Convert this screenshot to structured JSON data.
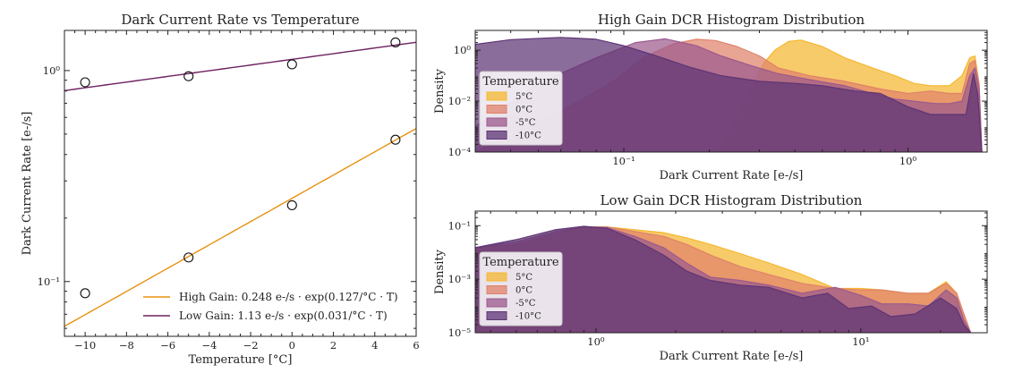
{
  "chart_data": [
    {
      "type": "scatter",
      "title": "Dark Current Rate vs Temperature",
      "xlabel": "Temperature [°C]",
      "ylabel": "Dark Current Rate [e-/s]",
      "xlim": [
        -11,
        6
      ],
      "ylim": [
        0.055,
        1.55
      ],
      "yscale": "log",
      "xticks": [
        -10,
        -8,
        -6,
        -4,
        -2,
        0,
        2,
        4,
        6
      ],
      "xtick_labels": [
        "−10",
        "−8",
        "−6",
        "−4",
        "−2",
        "0",
        "2",
        "4",
        "6"
      ],
      "yticks": [
        0.1,
        1.0
      ],
      "ytick_labels": [
        "10⁻¹",
        "10⁰"
      ],
      "legend_position": "lower-right",
      "series": [
        {
          "name": "High Gain: 0.248 e-/s · exp(0.127/°C · T)",
          "kind": "fit",
          "color": "#e8900f",
          "fit": {
            "a": 0.248,
            "b": 0.127
          },
          "points": [
            {
              "x": -10,
              "y": 0.088
            },
            {
              "x": -5,
              "y": 0.13
            },
            {
              "x": 0,
              "y": 0.23
            },
            {
              "x": 5,
              "y": 0.47
            }
          ]
        },
        {
          "name": "Low Gain: 1.13 e-/s · exp(0.031/°C · T)",
          "kind": "fit",
          "color": "#6e2160",
          "fit": {
            "a": 1.13,
            "b": 0.031
          },
          "points": [
            {
              "x": -10,
              "y": 0.88
            },
            {
              "x": -5,
              "y": 0.94
            },
            {
              "x": 0,
              "y": 1.07
            },
            {
              "x": 5,
              "y": 1.36
            }
          ]
        }
      ]
    },
    {
      "type": "area",
      "title": "High Gain DCR Histogram Distribution",
      "xlabel": "Dark Current Rate [e-/s]",
      "ylabel": "Density",
      "xscale": "log",
      "yscale": "log",
      "xlim": [
        0.03,
        1.9
      ],
      "ylim": [
        0.0001,
        6
      ],
      "xticks": [
        0.1,
        1
      ],
      "xtick_labels": [
        "10⁻¹",
        "10⁰"
      ],
      "yticks": [
        0.0001,
        0.01,
        1
      ],
      "ytick_labels": [
        "10⁻⁴",
        "10⁻²",
        "10⁰"
      ],
      "legend_title": "Temperature",
      "legend_position": "lower-left",
      "series": [
        {
          "name": "5°C",
          "color": "#f5b731",
          "x": [
            0.22,
            0.27,
            0.31,
            0.34,
            0.38,
            0.42,
            0.5,
            0.6,
            0.75,
            0.9,
            1.05,
            1.2,
            1.4,
            1.55,
            1.65,
            1.72,
            1.78,
            1.82
          ],
          "y": [
            0.0001,
            0.01,
            0.3,
            1.0,
            2.2,
            2.5,
            1.4,
            0.5,
            0.2,
            0.1,
            0.05,
            0.04,
            0.04,
            0.1,
            0.5,
            0.6,
            0.05,
            0.0001
          ]
        },
        {
          "name": "0°C",
          "color": "#e0826b",
          "x": [
            0.03,
            0.06,
            0.09,
            0.12,
            0.15,
            0.18,
            0.21,
            0.25,
            0.3,
            0.35,
            0.45,
            0.6,
            0.8,
            1.0,
            1.2,
            1.4,
            1.55,
            1.65,
            1.72,
            1.78,
            1.82
          ],
          "y": [
            0.0001,
            0.004,
            0.05,
            0.6,
            1.8,
            2.7,
            2.4,
            1.4,
            0.6,
            0.2,
            0.1,
            0.06,
            0.03,
            0.02,
            0.025,
            0.02,
            0.02,
            0.3,
            0.4,
            0.05,
            0.0001
          ]
        },
        {
          "name": "-5°C",
          "color": "#9c5a8e",
          "x": [
            0.03,
            0.05,
            0.08,
            0.11,
            0.14,
            0.18,
            0.22,
            0.28,
            0.35,
            0.45,
            0.6,
            0.75,
            0.9,
            1.05,
            1.25,
            1.4,
            1.55,
            1.65,
            1.72,
            1.78,
            1.82
          ],
          "y": [
            0.001,
            0.05,
            0.5,
            2.0,
            2.8,
            1.5,
            0.6,
            0.25,
            0.12,
            0.07,
            0.04,
            0.02,
            0.012,
            0.01,
            0.008,
            0.008,
            0.01,
            0.1,
            0.2,
            0.03,
            0.0001
          ]
        },
        {
          "name": "-10°C",
          "color": "#5e3575",
          "x": [
            0.03,
            0.04,
            0.06,
            0.08,
            0.1,
            0.13,
            0.17,
            0.22,
            0.3,
            0.4,
            0.5,
            0.65,
            0.8,
            1.0,
            1.2,
            1.45,
            1.6,
            1.7,
            1.76,
            1.82
          ],
          "y": [
            1.7,
            2.6,
            3.2,
            2.7,
            1.5,
            0.6,
            0.22,
            0.1,
            0.06,
            0.05,
            0.04,
            0.025,
            0.02,
            0.006,
            0.003,
            0.003,
            0.003,
            0.12,
            0.02,
            0.0001
          ]
        }
      ]
    },
    {
      "type": "area",
      "title": "Low Gain DCR Histogram Distribution",
      "xlabel": "Dark Current Rate [e-/s]",
      "ylabel": "Density",
      "xscale": "log",
      "yscale": "log",
      "xlim": [
        0.35,
        30
      ],
      "ylim": [
        1e-05,
        0.35
      ],
      "xticks": [
        1,
        10
      ],
      "xtick_labels": [
        "10⁰",
        "10¹"
      ],
      "yticks": [
        1e-05,
        0.001,
        0.1
      ],
      "ytick_labels": [
        "10⁻⁵",
        "10⁻³",
        "10⁻¹"
      ],
      "legend_title": "Temperature",
      "legend_position": "lower-left",
      "series": [
        {
          "name": "5°C",
          "color": "#f5b731",
          "x": [
            0.35,
            0.5,
            0.7,
            0.9,
            1.1,
            1.4,
            1.8,
            2.2,
            2.7,
            3.5,
            4.5,
            6,
            8,
            10,
            12,
            15,
            18,
            21,
            23,
            24.5,
            26
          ],
          "y": [
            0.015,
            0.02,
            0.05,
            0.09,
            0.09,
            0.07,
            0.055,
            0.035,
            0.02,
            0.009,
            0.004,
            0.0015,
            0.00045,
            0.00045,
            0.0004,
            0.0003,
            0.0003,
            0.0008,
            0.0003,
            5e-05,
            1e-05
          ]
        },
        {
          "name": "0°C",
          "color": "#e0826b",
          "x": [
            0.35,
            0.5,
            0.7,
            0.9,
            1.1,
            1.4,
            1.8,
            2.2,
            2.7,
            3.5,
            4.5,
            6,
            8,
            10,
            12,
            15,
            18,
            21,
            23,
            24.5,
            26
          ],
          "y": [
            0.015,
            0.02,
            0.05,
            0.09,
            0.09,
            0.06,
            0.04,
            0.02,
            0.008,
            0.003,
            0.0015,
            0.0007,
            0.00045,
            0.0004,
            0.0004,
            0.0003,
            0.0003,
            0.0007,
            0.0003,
            5e-05,
            1e-05
          ]
        },
        {
          "name": "-5°C",
          "color": "#9c5a8e",
          "x": [
            0.35,
            0.5,
            0.7,
            0.9,
            1.1,
            1.4,
            1.8,
            2.2,
            2.7,
            3.5,
            4.5,
            6,
            8,
            10,
            12,
            15,
            18,
            21,
            23,
            24.5,
            26
          ],
          "y": [
            0.015,
            0.025,
            0.06,
            0.09,
            0.085,
            0.04,
            0.015,
            0.004,
            0.0012,
            0.0009,
            0.0006,
            0.0003,
            0.0005,
            0.00025,
            0.00012,
            0.00012,
            0.0001,
            0.0004,
            0.0002,
            3e-05,
            1e-05
          ]
        },
        {
          "name": "-10°C",
          "color": "#5e3575",
          "x": [
            0.35,
            0.5,
            0.7,
            0.9,
            1.1,
            1.4,
            1.8,
            2.2,
            2.7,
            3.5,
            4.5,
            6,
            7.5,
            9,
            11,
            13,
            16,
            20,
            23,
            24.5,
            26
          ],
          "y": [
            0.015,
            0.03,
            0.07,
            0.095,
            0.08,
            0.03,
            0.008,
            0.002,
            0.0009,
            0.0006,
            0.0005,
            0.0002,
            0.0003,
            8e-05,
            0.0001,
            4e-05,
            5e-05,
            0.0002,
            8e-05,
            2e-05,
            1e-05
          ]
        }
      ]
    }
  ]
}
